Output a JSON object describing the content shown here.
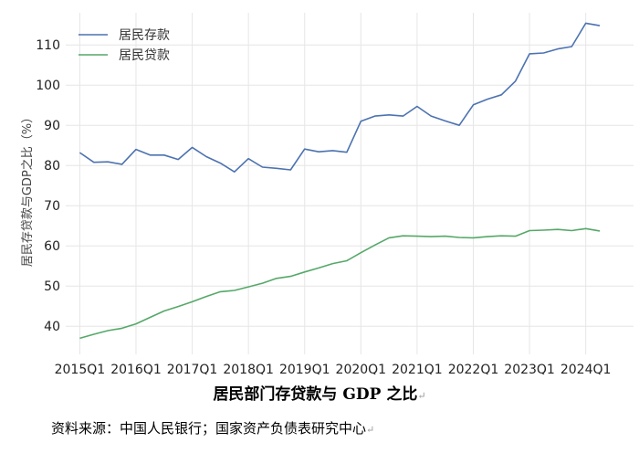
{
  "chart_data": {
    "type": "line",
    "title": "",
    "xlabel": "",
    "ylabel": "居民存贷款与GDP之比（%）",
    "ylim": [
      33,
      118
    ],
    "yticks": [
      40,
      50,
      60,
      70,
      80,
      90,
      100,
      110
    ],
    "x_start": 2015.0,
    "x_step": 0.25,
    "x_tick_labels": [
      "2015Q1",
      "2016Q1",
      "2017Q1",
      "2018Q1",
      "2019Q1",
      "2020Q1",
      "2021Q1",
      "2022Q1",
      "2023Q1",
      "2024Q1"
    ],
    "x_tick_values": [
      2015,
      2016,
      2017,
      2018,
      2019,
      2020,
      2021,
      2022,
      2023,
      2024
    ],
    "legend_position": "top-left",
    "series": [
      {
        "name": "居民存款",
        "color": "#4c72b0",
        "values": [
          83.2,
          80.8,
          80.9,
          80.3,
          84.0,
          82.6,
          82.6,
          81.5,
          84.5,
          82.2,
          80.6,
          78.4,
          81.7,
          79.6,
          79.3,
          78.9,
          84.1,
          83.4,
          83.7,
          83.3,
          91.0,
          92.3,
          92.6,
          92.3,
          94.7,
          92.3,
          91.1,
          90.0,
          95.1,
          96.5,
          97.6,
          101.0,
          107.8,
          108.0,
          109.0,
          109.6,
          115.4,
          114.8
        ]
      },
      {
        "name": "居民贷款",
        "color": "#55a868",
        "values": [
          37.0,
          38.0,
          38.9,
          39.5,
          40.6,
          42.2,
          43.8,
          44.9,
          46.1,
          47.4,
          48.6,
          48.9,
          49.8,
          50.7,
          51.9,
          52.4,
          53.5,
          54.5,
          55.6,
          56.3,
          58.3,
          60.2,
          62.0,
          62.5,
          62.4,
          62.3,
          62.4,
          62.1,
          62.0,
          62.3,
          62.5,
          62.4,
          63.8,
          63.9,
          64.1,
          63.8,
          64.3,
          63.7
        ]
      }
    ]
  },
  "caption": "居民部门存贷款与 GDP 之比",
  "source": "资料来源：中国人民银行；国家资产负债表研究中心",
  "paragraph_mark": "↵"
}
